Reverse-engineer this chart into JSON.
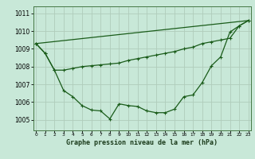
{
  "bg_color": "#c8e8d8",
  "grid_color": "#b0ccbb",
  "line_color": "#1a5c1a",
  "xlabel": "Graphe pression niveau de la mer (hPa)",
  "x_ticks": [
    0,
    1,
    2,
    3,
    4,
    5,
    6,
    7,
    8,
    9,
    10,
    11,
    12,
    13,
    14,
    15,
    16,
    17,
    18,
    19,
    20,
    21,
    22,
    23
  ],
  "ylim": [
    1004.4,
    1011.4
  ],
  "yticks": [
    1005,
    1006,
    1007,
    1008,
    1009,
    1010,
    1011
  ],
  "line1_x": [
    0,
    1,
    2,
    3,
    4,
    5,
    6,
    7,
    8,
    9,
    10,
    11,
    12,
    13,
    14,
    15,
    16,
    17,
    18,
    19,
    20,
    21,
    22,
    23
  ],
  "line1_y": [
    1009.3,
    1008.75,
    1007.8,
    1007.8,
    1007.9,
    1008.0,
    1008.05,
    1008.1,
    1008.15,
    1008.2,
    1008.35,
    1008.45,
    1008.55,
    1008.65,
    1008.75,
    1008.85,
    1009.0,
    1009.1,
    1009.3,
    1009.4,
    1009.5,
    1009.6,
    1010.3,
    1010.6
  ],
  "line2_x": [
    0,
    1,
    2,
    3,
    4,
    5,
    6,
    7,
    8,
    9,
    10,
    11,
    12,
    13,
    14,
    15,
    16,
    17,
    18,
    19,
    20,
    21,
    22,
    23
  ],
  "line2_y": [
    1009.3,
    1008.75,
    1007.8,
    1006.65,
    1006.3,
    1005.8,
    1005.55,
    1005.5,
    1005.05,
    1005.9,
    1005.8,
    1005.75,
    1005.5,
    1005.4,
    1005.4,
    1005.6,
    1006.3,
    1006.4,
    1007.1,
    1008.05,
    1008.55,
    1009.95,
    1010.3,
    1010.6
  ],
  "line3_x": [
    0,
    23
  ],
  "line3_y": [
    1009.3,
    1010.6
  ]
}
